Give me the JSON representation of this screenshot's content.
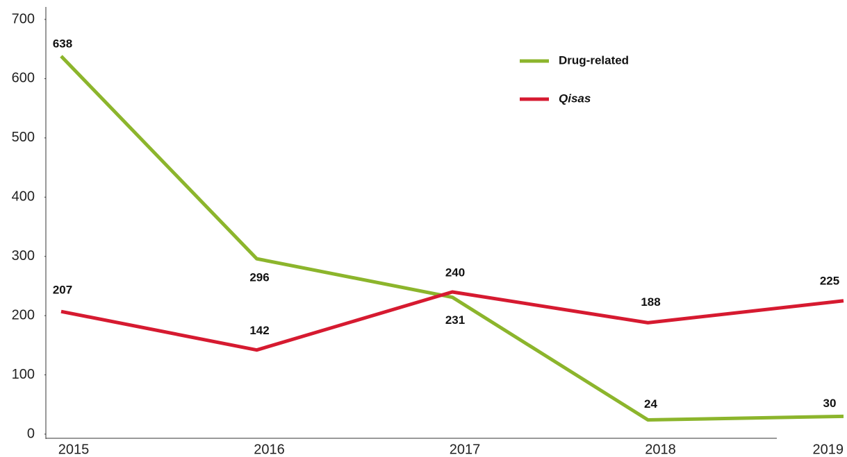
{
  "chart_data": {
    "type": "line",
    "categories": [
      "2015",
      "2016",
      "2017",
      "2018",
      "2019"
    ],
    "series": [
      {
        "name": "Drug-related",
        "color": "#8cb52c",
        "values": [
          638,
          296,
          231,
          24,
          30
        ]
      },
      {
        "name": "Qisas",
        "color": "#d61a30",
        "values": [
          207,
          142,
          240,
          188,
          225
        ]
      }
    ],
    "ylim": [
      0,
      700
    ],
    "yticks": [
      0,
      100,
      200,
      300,
      400,
      500,
      600,
      700
    ],
    "grid": false,
    "legend": "upper right"
  }
}
